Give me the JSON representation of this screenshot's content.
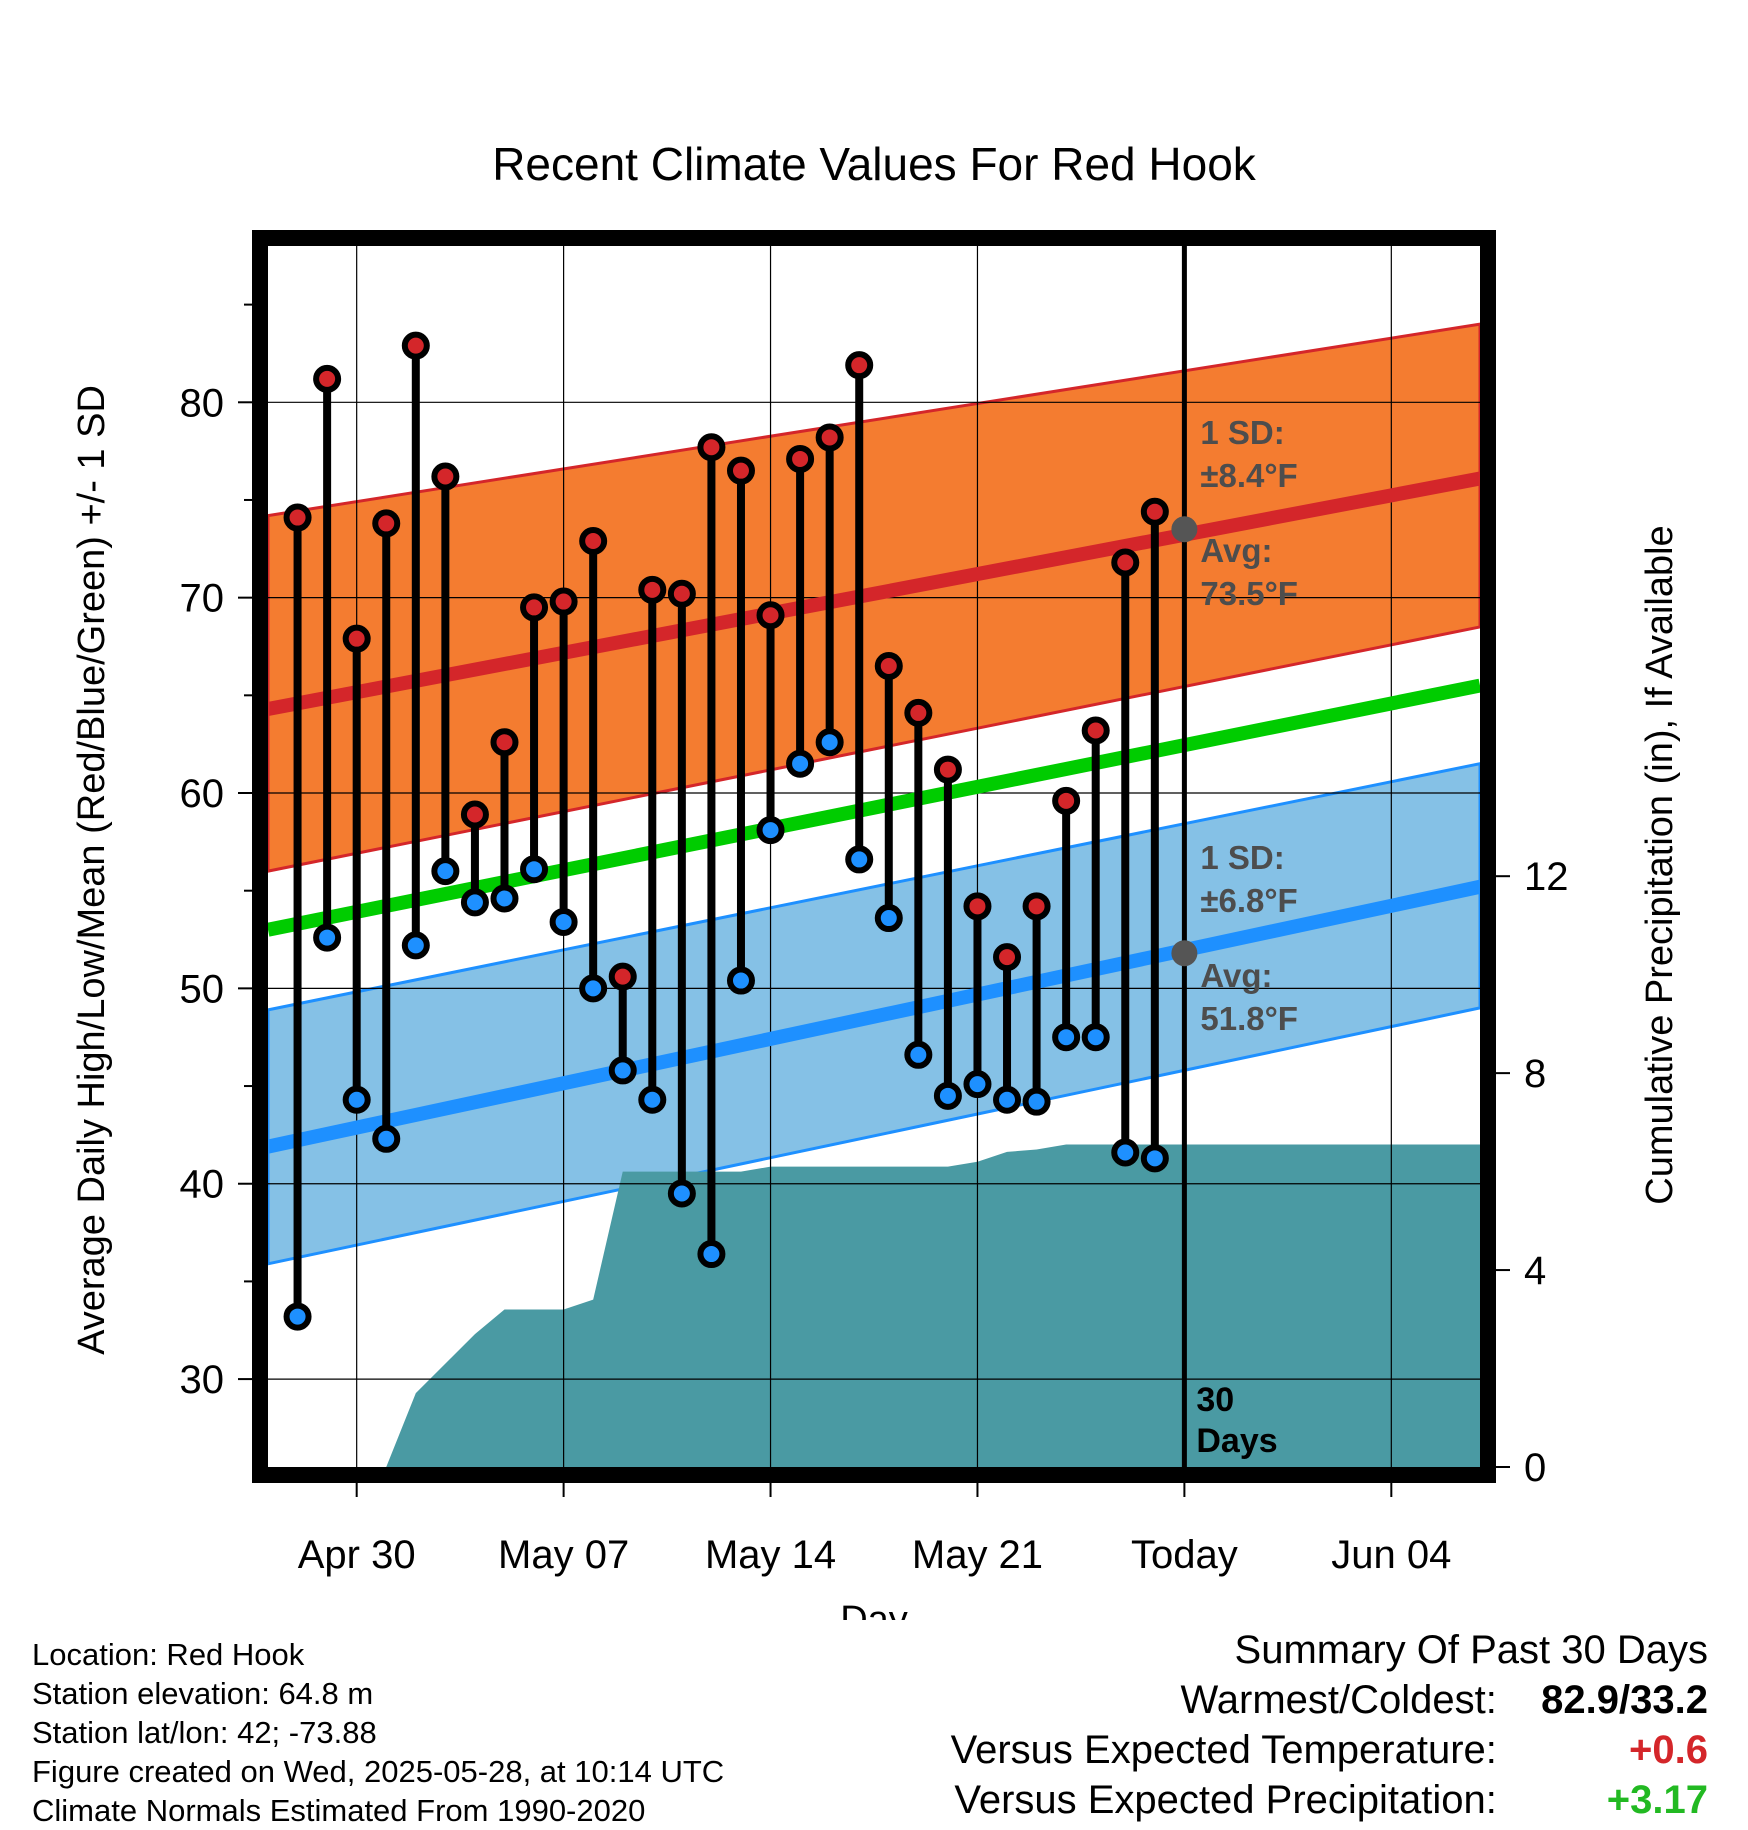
{
  "chart_data": {
    "type": "line",
    "title": "Recent Climate Values For Red Hook",
    "xlabel": "Day",
    "ylabel": "Average Daily High/Low/Mean (Red/Blue/Green) +/- 1 SD",
    "ylabel_right": "Cumulative Precipitation (in), If Available",
    "x_ticks": [
      "Apr 30",
      "May 07",
      "May 14",
      "May 21",
      "Today",
      "Jun 04"
    ],
    "y_ticks": [
      30,
      40,
      50,
      60,
      70,
      80
    ],
    "y2_ticks": [
      0,
      4,
      8,
      12
    ],
    "ylim": [
      25.5,
      88
    ],
    "y2lim": [
      0,
      24.8
    ],
    "xlim_days": [
      "2025-04-27",
      "2025-06-07"
    ],
    "today": "2025-05-28",
    "days": [
      "2025-04-28",
      "2025-04-29",
      "2025-04-30",
      "2025-05-01",
      "2025-05-02",
      "2025-05-03",
      "2025-05-04",
      "2025-05-05",
      "2025-05-06",
      "2025-05-07",
      "2025-05-08",
      "2025-05-09",
      "2025-05-10",
      "2025-05-11",
      "2025-05-12",
      "2025-05-13",
      "2025-05-14",
      "2025-05-15",
      "2025-05-16",
      "2025-05-17",
      "2025-05-18",
      "2025-05-19",
      "2025-05-20",
      "2025-05-21",
      "2025-05-22",
      "2025-05-23",
      "2025-05-24",
      "2025-05-25",
      "2025-05-26",
      "2025-05-27"
    ],
    "series": [
      {
        "name": "High",
        "color": "#d4262a",
        "values": [
          74.1,
          81.2,
          67.9,
          73.8,
          82.9,
          76.2,
          58.9,
          62.6,
          69.5,
          69.8,
          72.9,
          50.6,
          70.4,
          70.2,
          77.7,
          76.5,
          69.1,
          77.1,
          78.2,
          81.9,
          66.5,
          64.1,
          61.2,
          54.2,
          51.6,
          54.2,
          59.6,
          63.2,
          71.8,
          74.4
        ]
      },
      {
        "name": "Low",
        "color": "#1e90ff",
        "values": [
          33.2,
          52.6,
          44.3,
          42.3,
          52.2,
          56.0,
          54.4,
          54.6,
          56.1,
          53.4,
          50.0,
          45.8,
          44.3,
          39.5,
          36.4,
          50.4,
          58.1,
          61.5,
          62.6,
          56.6,
          53.6,
          46.6,
          44.5,
          45.1,
          44.3,
          44.2,
          47.5,
          47.5,
          41.6,
          41.3
        ]
      }
    ],
    "normals": {
      "high_avg": {
        "start": 64.3,
        "end": 76.1,
        "color": "#d4262a"
      },
      "high_sd_band": {
        "upper_start": 74.2,
        "upper_end": 84.0,
        "lower_start": 56.0,
        "lower_end": 68.5,
        "color": "#f47c30"
      },
      "mean_avg": {
        "start": 53.0,
        "end": 65.5,
        "color": "#00cc00"
      },
      "low_avg": {
        "start": 41.9,
        "end": 55.2,
        "color": "#1e90ff"
      },
      "low_sd_band": {
        "upper_start": 48.9,
        "upper_end": 61.5,
        "lower_start": 35.9,
        "lower_end": 49.0,
        "color": "#85c1e6"
      }
    },
    "precip_cumulative": {
      "color": "#4a9aa3",
      "points": [
        {
          "day": "2025-05-01",
          "value": 0.0
        },
        {
          "day": "2025-05-02",
          "value": 1.5
        },
        {
          "day": "2025-05-04",
          "value": 2.7
        },
        {
          "day": "2025-05-05",
          "value": 3.2
        },
        {
          "day": "2025-05-07",
          "value": 3.2
        },
        {
          "day": "2025-05-08",
          "value": 3.4
        },
        {
          "day": "2025-05-09",
          "value": 6.0
        },
        {
          "day": "2025-05-12",
          "value": 6.0
        },
        {
          "day": "2025-05-13",
          "value": 6.0
        },
        {
          "day": "2025-05-14",
          "value": 6.1
        },
        {
          "day": "2025-05-20",
          "value": 6.1
        },
        {
          "day": "2025-05-21",
          "value": 6.2
        },
        {
          "day": "2025-05-22",
          "value": 6.4
        },
        {
          "day": "2025-05-23",
          "value": 6.45
        },
        {
          "day": "2025-05-24",
          "value": 6.55
        },
        {
          "day": "2025-06-07",
          "value": 6.55
        }
      ]
    },
    "annotations": {
      "high_sd_line1": "1 SD:",
      "high_sd_line2": "±8.4°F",
      "high_avg_line1": "Avg:",
      "high_avg_line2": "73.5°F",
      "low_sd_line1": "1 SD:",
      "low_sd_line2": "±6.8°F",
      "low_avg_line1": "Avg:",
      "low_avg_line2": "51.8°F",
      "days_line1": "30",
      "days_line2": "Days",
      "today_high_avg": 73.5,
      "today_low_avg": 51.8
    },
    "grid": true
  },
  "info": {
    "location": "Location: Red Hook",
    "elevation": "Station elevation: 64.8 m",
    "latlon": "Station lat/lon: 42; -73.88",
    "created": "Figure created on Wed, 2025-05-28, at 10:14 UTC",
    "normals": "Climate Normals Estimated From 1990-2020"
  },
  "summary": {
    "title": "Summary Of Past 30 Days",
    "warm_cold_label": "Warmest/Coldest:",
    "warm_cold_value": "82.9/33.2",
    "temp_label": "Versus Expected Temperature:",
    "temp_value": "+0.6",
    "precip_label": "Versus Expected Precipitation:",
    "precip_value": "+3.17"
  }
}
